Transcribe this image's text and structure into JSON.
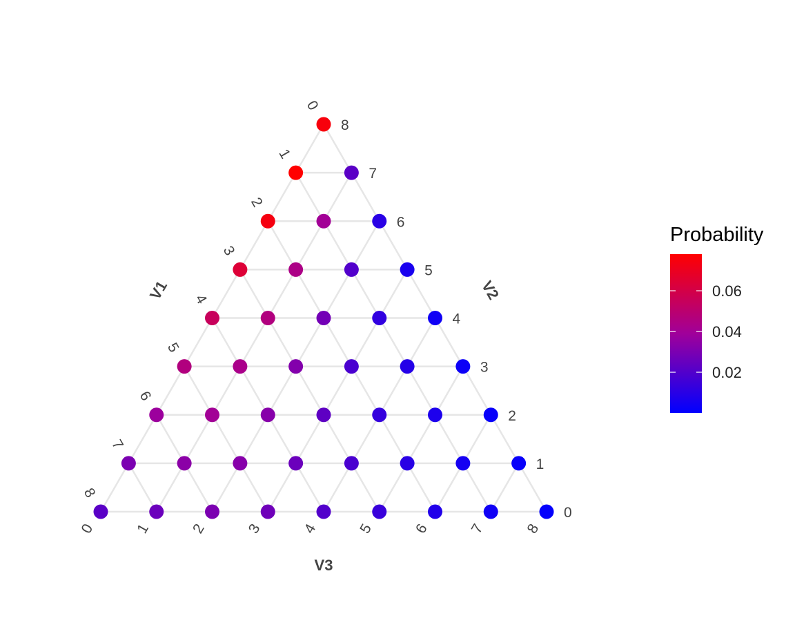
{
  "chart_data": {
    "type": "scatter",
    "subtype": "ternary-simplex",
    "n": 8,
    "axes": {
      "v1": {
        "title": "V1",
        "ticks": [
          "0",
          "1",
          "2",
          "3",
          "4",
          "5",
          "6",
          "7",
          "8"
        ]
      },
      "v2": {
        "title": "V2",
        "ticks": [
          "8",
          "7",
          "6",
          "5",
          "4",
          "3",
          "2",
          "1",
          "0"
        ]
      },
      "v3": {
        "title": "V3",
        "ticks": [
          "0",
          "1",
          "2",
          "3",
          "4",
          "5",
          "6",
          "7",
          "8"
        ]
      }
    },
    "legend": {
      "title": "Probability",
      "placement": "right",
      "min": 0.0,
      "max": 0.078,
      "ticks": [
        {
          "value": 0.02,
          "label": "0.02"
        },
        {
          "value": 0.04,
          "label": "0.04"
        },
        {
          "value": 0.06,
          "label": "0.06"
        }
      ],
      "low_color": "#0000ff",
      "high_color": "#ff0000"
    },
    "grid": true,
    "point_fields": [
      "v1",
      "v2",
      "v3",
      "probability"
    ],
    "points": [
      [
        0,
        8,
        0,
        0.075
      ],
      [
        1,
        7,
        0,
        0.078
      ],
      [
        0,
        7,
        1,
        0.022
      ],
      [
        2,
        6,
        0,
        0.074
      ],
      [
        1,
        6,
        1,
        0.04
      ],
      [
        0,
        6,
        2,
        0.01
      ],
      [
        3,
        5,
        0,
        0.064
      ],
      [
        2,
        5,
        1,
        0.044
      ],
      [
        1,
        5,
        2,
        0.02
      ],
      [
        0,
        5,
        3,
        0.006
      ],
      [
        4,
        4,
        0,
        0.055
      ],
      [
        3,
        4,
        1,
        0.046
      ],
      [
        2,
        4,
        2,
        0.028
      ],
      [
        1,
        4,
        3,
        0.012
      ],
      [
        0,
        4,
        4,
        0.004
      ],
      [
        5,
        3,
        0,
        0.046
      ],
      [
        4,
        3,
        1,
        0.043
      ],
      [
        3,
        3,
        2,
        0.032
      ],
      [
        2,
        3,
        3,
        0.018
      ],
      [
        1,
        3,
        4,
        0.009
      ],
      [
        0,
        3,
        5,
        0.003
      ],
      [
        6,
        2,
        0,
        0.038
      ],
      [
        5,
        2,
        1,
        0.04
      ],
      [
        4,
        2,
        2,
        0.033
      ],
      [
        3,
        2,
        3,
        0.023
      ],
      [
        2,
        2,
        4,
        0.013
      ],
      [
        1,
        2,
        5,
        0.007
      ],
      [
        0,
        2,
        6,
        0.002
      ],
      [
        7,
        1,
        0,
        0.03
      ],
      [
        6,
        1,
        1,
        0.034
      ],
      [
        5,
        1,
        2,
        0.033
      ],
      [
        4,
        1,
        3,
        0.026
      ],
      [
        3,
        1,
        4,
        0.018
      ],
      [
        2,
        1,
        5,
        0.01
      ],
      [
        1,
        1,
        6,
        0.005
      ],
      [
        0,
        1,
        7,
        0.002
      ],
      [
        8,
        0,
        0,
        0.022
      ],
      [
        7,
        0,
        1,
        0.026
      ],
      [
        6,
        0,
        2,
        0.03
      ],
      [
        5,
        0,
        3,
        0.027
      ],
      [
        4,
        0,
        4,
        0.02
      ],
      [
        3,
        0,
        5,
        0.014
      ],
      [
        2,
        0,
        6,
        0.008
      ],
      [
        1,
        0,
        7,
        0.004
      ],
      [
        0,
        0,
        8,
        0.001
      ]
    ]
  }
}
